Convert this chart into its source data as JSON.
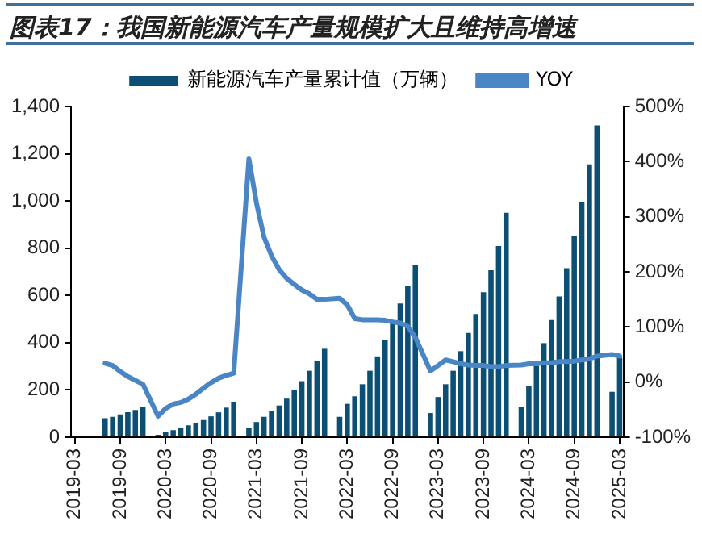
{
  "chart_data": {
    "type": "bar",
    "title": "图表17：我国新能源汽车产量规模扩大且维持高增速",
    "categories": [
      "2019-03",
      null,
      null,
      null,
      null,
      null,
      "2019-09",
      null,
      null,
      null,
      null,
      null,
      "2020-03",
      null,
      null,
      null,
      null,
      null,
      "2020-09",
      null,
      null,
      null,
      null,
      null,
      "2021-03",
      null,
      null,
      null,
      null,
      null,
      "2021-09",
      null,
      null,
      null,
      null,
      null,
      "2022-03",
      null,
      null,
      null,
      null,
      null,
      "2022-09",
      null,
      null,
      null,
      null,
      null,
      "2023-03",
      null,
      null,
      null,
      null,
      null,
      "2023-09",
      null,
      null,
      null,
      null,
      null,
      "2024-03",
      null,
      null,
      null,
      null,
      null,
      "2024-09",
      null,
      null,
      null,
      null,
      null,
      "2025-03"
    ],
    "series": [
      {
        "name": "新能源汽车产量累计值（万辆）",
        "color": "#0b4f74",
        "values": [
          null,
          null,
          null,
          null,
          80,
          86,
          96,
          106,
          115,
          128,
          null,
          10,
          20,
          30,
          40,
          50,
          60,
          72,
          88,
          105,
          125,
          150,
          null,
          38,
          64,
          86,
          112,
          134,
          163,
          198,
          237,
          281,
          323,
          374,
          null,
          86,
          141,
          173,
          224,
          281,
          342,
          413,
          486,
          566,
          640,
          729,
          null,
          102,
          170,
          224,
          281,
          364,
          441,
          521,
          614,
          707,
          809,
          950,
          null,
          128,
          216,
          302,
          398,
          496,
          596,
          715,
          850,
          995,
          1155,
          1320,
          null,
          192,
          336
        ]
      },
      {
        "name": "YOY",
        "type": "line",
        "axis": "y2",
        "color": "#4a86c5",
        "values": [
          null,
          null,
          null,
          null,
          34,
          30,
          19,
          10,
          3,
          -4,
          null,
          -62,
          -48,
          -40,
          -37,
          -31,
          -22,
          -11,
          -1,
          7,
          12,
          16,
          null,
          405,
          325,
          263,
          229,
          204,
          188,
          177,
          167,
          160,
          150,
          150,
          null,
          152,
          140,
          115,
          113,
          113,
          113,
          112,
          109,
          107,
          101,
          81,
          null,
          20,
          30,
          40,
          37,
          33,
          31,
          30,
          30,
          28,
          28,
          30,
          null,
          31,
          33,
          33,
          35,
          35,
          37,
          37,
          38,
          40,
          42,
          47,
          null,
          50,
          47
        ]
      }
    ],
    "ylim": [
      0,
      1400
    ],
    "yticks": [
      0,
      200,
      400,
      600,
      800,
      {
        "value": 1000,
        "label": "1,000"
      },
      {
        "value": 1200,
        "label": "1,200"
      },
      {
        "value": 1400,
        "label": "1,400"
      }
    ],
    "y2lim": [
      -100,
      500
    ],
    "y2ticks": [
      {
        "value": -100,
        "label": "-100%"
      },
      {
        "value": 0,
        "label": "0%"
      },
      {
        "value": 100,
        "label": "100%"
      },
      {
        "value": 200,
        "label": "200%"
      },
      {
        "value": 300,
        "label": "300%"
      },
      {
        "value": 400,
        "label": "400%"
      },
      {
        "value": 500,
        "label": "500%"
      }
    ],
    "legend": "top",
    "grid": false,
    "marker": "none",
    "line_style": "solid"
  }
}
